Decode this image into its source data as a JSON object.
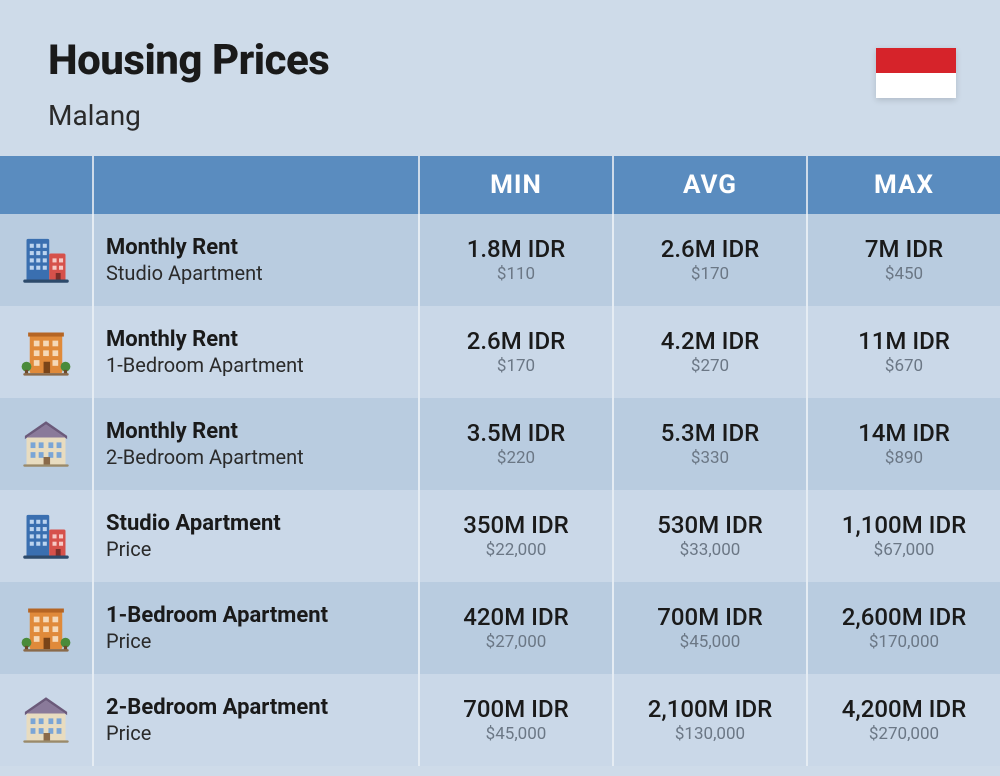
{
  "header": {
    "title": "Housing Prices",
    "subtitle": "Malang",
    "flag": {
      "top_color": "#d6232a",
      "bottom_color": "#ffffff"
    }
  },
  "columns": {
    "min": "MIN",
    "avg": "AVG",
    "max": "MAX"
  },
  "colors": {
    "page_bg": "#cedbe9",
    "header_band": "#5a8cbf",
    "row_odd": "#b9cce0",
    "row_even": "#cad8e8",
    "border": "#e5ecf3",
    "text_primary": "#1a1a1a",
    "text_secondary": "#6b7785"
  },
  "rows": [
    {
      "icon": "building-tall",
      "title": "Monthly Rent",
      "subtitle": "Studio Apartment",
      "min": {
        "main": "1.8M IDR",
        "sub": "$110"
      },
      "avg": {
        "main": "2.6M IDR",
        "sub": "$170"
      },
      "max": {
        "main": "7M IDR",
        "sub": "$450"
      }
    },
    {
      "icon": "building-orange",
      "title": "Monthly Rent",
      "subtitle": "1-Bedroom Apartment",
      "min": {
        "main": "2.6M IDR",
        "sub": "$170"
      },
      "avg": {
        "main": "4.2M IDR",
        "sub": "$270"
      },
      "max": {
        "main": "11M IDR",
        "sub": "$670"
      }
    },
    {
      "icon": "building-house",
      "title": "Monthly Rent",
      "subtitle": "2-Bedroom Apartment",
      "min": {
        "main": "3.5M IDR",
        "sub": "$220"
      },
      "avg": {
        "main": "5.3M IDR",
        "sub": "$330"
      },
      "max": {
        "main": "14M IDR",
        "sub": "$890"
      }
    },
    {
      "icon": "building-tall",
      "title": "Studio Apartment",
      "subtitle": "Price",
      "min": {
        "main": "350M IDR",
        "sub": "$22,000"
      },
      "avg": {
        "main": "530M IDR",
        "sub": "$33,000"
      },
      "max": {
        "main": "1,100M IDR",
        "sub": "$67,000"
      }
    },
    {
      "icon": "building-orange",
      "title": "1-Bedroom Apartment",
      "subtitle": "Price",
      "min": {
        "main": "420M IDR",
        "sub": "$27,000"
      },
      "avg": {
        "main": "700M IDR",
        "sub": "$45,000"
      },
      "max": {
        "main": "2,600M IDR",
        "sub": "$170,000"
      }
    },
    {
      "icon": "building-house",
      "title": "2-Bedroom Apartment",
      "subtitle": "Price",
      "min": {
        "main": "700M IDR",
        "sub": "$45,000"
      },
      "avg": {
        "main": "2,100M IDR",
        "sub": "$130,000"
      },
      "max": {
        "main": "4,200M IDR",
        "sub": "$270,000"
      }
    }
  ]
}
